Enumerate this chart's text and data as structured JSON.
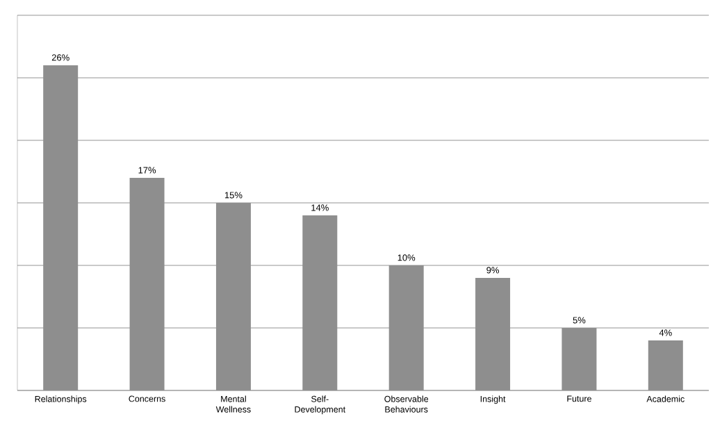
{
  "chart_data": {
    "type": "bar",
    "categories": [
      "Relationships",
      "Concerns",
      "Mental Wellness",
      "Self-Development",
      "Observable Behaviours",
      "Insight",
      "Future",
      "Academic"
    ],
    "values": [
      26,
      17,
      15,
      14,
      10,
      9,
      5,
      4
    ],
    "value_labels": [
      "26%",
      "17%",
      "15%",
      "14%",
      "10%",
      "9%",
      "5%",
      "4%"
    ],
    "color": "#8e8e8e",
    "ylim": [
      0,
      30
    ],
    "yticks": [
      {
        "value": 0,
        "label": null
      },
      {
        "value": 5,
        "label": null
      },
      {
        "value": 10,
        "label": null
      },
      {
        "value": 15,
        "label": null
      },
      {
        "value": 20,
        "label": null
      },
      {
        "value": 25,
        "label": null
      },
      {
        "value": 30,
        "label": null
      }
    ],
    "grid": "y",
    "tick_labels": "x"
  }
}
